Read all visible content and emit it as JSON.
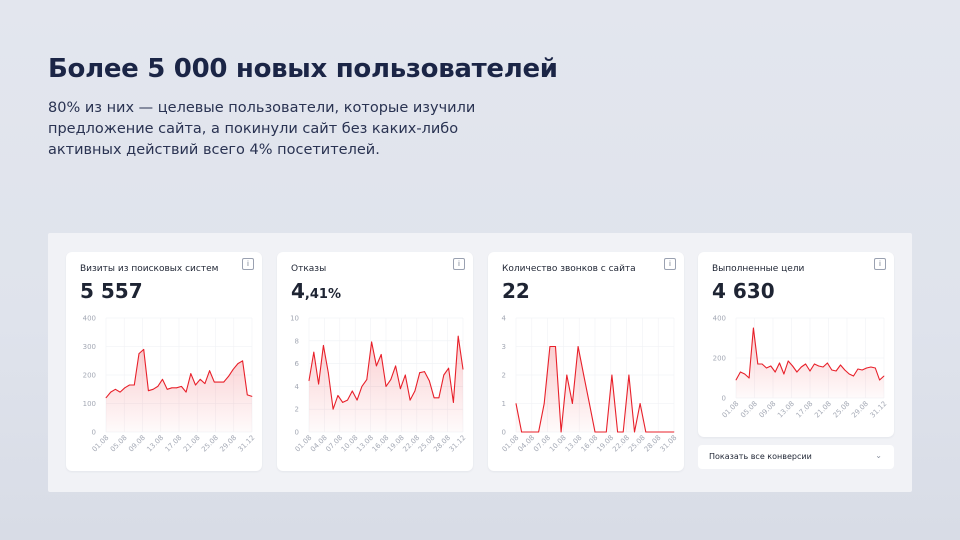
{
  "headline": "Более 5 000 новых пользователей",
  "subtext": "80% из них — целевые пользователи, которые изучили предложение сайта, а покинули сайт без каких-либо активных действий всего 4% посетителей.",
  "info_icon": "i",
  "accent_color": "#e8202a",
  "cards": [
    {
      "title": "Визиты из поисковых систем",
      "value": "5 557"
    },
    {
      "title": "Отказы",
      "value_int": "4",
      "value_frac": ",41%"
    },
    {
      "title": "Количество звонков с сайта",
      "value": "22"
    },
    {
      "title": "Выполненные цели",
      "value": "4 630"
    }
  ],
  "dropdown": {
    "label": "Показать все конверсии",
    "icon": "chevron-down-icon"
  },
  "chart_data": [
    {
      "type": "area",
      "title": "Визиты из поисковых систем",
      "ylim": [
        0,
        400
      ],
      "yticks": [
        "0",
        "100",
        "200",
        "300",
        "400"
      ],
      "xticks": [
        "01.08",
        "05.08",
        "09.08",
        "13.08",
        "17.08",
        "21.08",
        "25.08",
        "29.08",
        "31.12"
      ],
      "values": [
        120,
        140,
        150,
        140,
        155,
        165,
        165,
        275,
        290,
        145,
        150,
        160,
        185,
        150,
        155,
        155,
        160,
        140,
        205,
        165,
        185,
        170,
        215,
        175,
        175,
        175,
        195,
        220,
        240,
        250,
        130,
        125
      ]
    },
    {
      "type": "area",
      "title": "Отказы",
      "ylim": [
        0,
        10
      ],
      "yticks": [
        "0",
        "2",
        "4",
        "6",
        "8",
        "10"
      ],
      "xticks": [
        "01.08",
        "04.08",
        "07.08",
        "10.08",
        "13.08",
        "16.08",
        "19.08",
        "22.08",
        "25.08",
        "28.08",
        "31.12"
      ],
      "values": [
        4.5,
        7.0,
        4.2,
        7.6,
        5.2,
        2.0,
        3.2,
        2.6,
        2.8,
        3.6,
        2.8,
        4.0,
        4.6,
        7.9,
        5.8,
        6.8,
        4.0,
        4.6,
        5.8,
        3.8,
        5.0,
        2.8,
        3.6,
        5.2,
        5.3,
        4.5,
        3.0,
        3.0,
        5.0,
        5.6,
        2.6,
        8.4,
        5.5
      ]
    },
    {
      "type": "area",
      "title": "Количество звонков с сайта",
      "ylim": [
        0,
        4
      ],
      "yticks": [
        "0",
        "1",
        "2",
        "3",
        "4"
      ],
      "xticks": [
        "01.08",
        "04.08",
        "07.08",
        "10.08",
        "13.08",
        "16.08",
        "19.08",
        "22.08",
        "25.08",
        "28.08",
        "31.08"
      ],
      "values": [
        1,
        0,
        0,
        0,
        0,
        1,
        3,
        3,
        0,
        2,
        1,
        3,
        2,
        1,
        0,
        0,
        0,
        2,
        0,
        0,
        2,
        0,
        1,
        0,
        0,
        0,
        0,
        0,
        0
      ]
    },
    {
      "type": "area",
      "title": "Выполненные цели",
      "ylim": [
        0,
        400
      ],
      "yticks": [
        "0",
        "200",
        "400"
      ],
      "xticks": [
        "01.08",
        "05.08",
        "09.08",
        "13.08",
        "17.08",
        "21.08",
        "25.08",
        "29.08",
        "31.12"
      ],
      "values": [
        90,
        130,
        120,
        100,
        350,
        170,
        170,
        150,
        160,
        130,
        175,
        120,
        185,
        160,
        130,
        155,
        170,
        135,
        170,
        160,
        155,
        175,
        140,
        135,
        165,
        140,
        120,
        110,
        145,
        140,
        150,
        155,
        150,
        90,
        110
      ]
    }
  ]
}
